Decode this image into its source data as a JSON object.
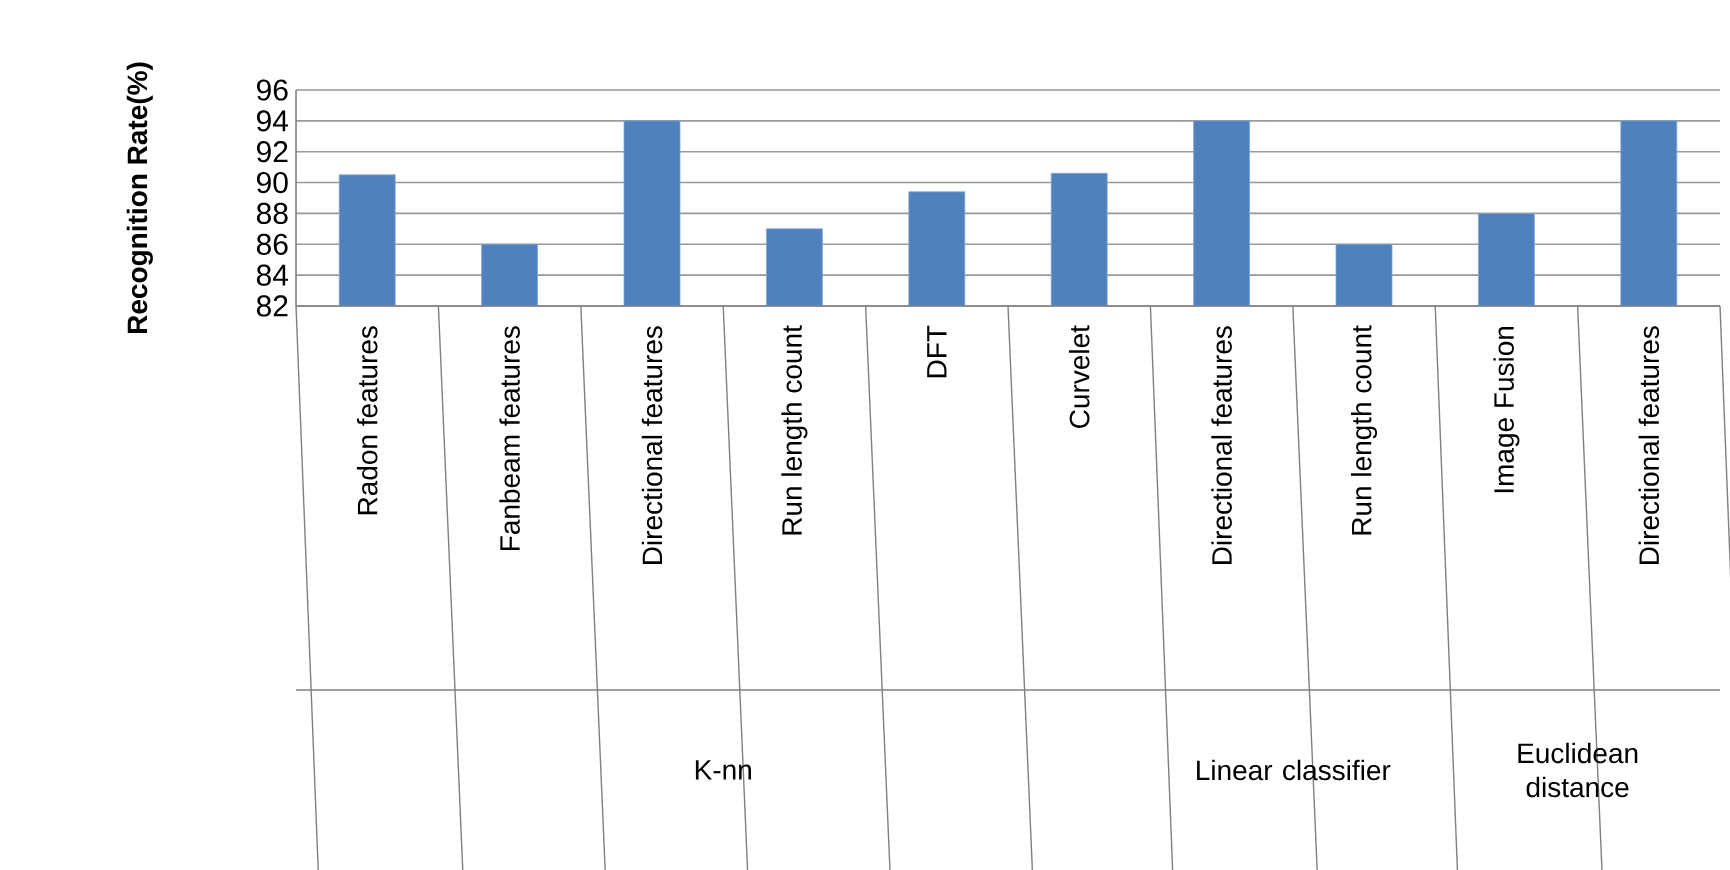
{
  "chart_data": {
    "type": "bar",
    "ylabel": "Recognition Rate(%)",
    "categories": [
      "Radon features",
      "Fanbeam features",
      "Directional features",
      "Run length count",
      "DFT",
      "Curvelet",
      "Directional features",
      "Run length count",
      "Image Fusion",
      "Directional features"
    ],
    "values": [
      90.5,
      86,
      94,
      87,
      89.4,
      90.6,
      94,
      86,
      88,
      94
    ],
    "color": "#4f81bd",
    "ylim": [
      82,
      96
    ],
    "yticks": [
      82,
      84,
      86,
      88,
      90,
      92,
      94,
      96
    ],
    "grid": "y",
    "annotations": [
      "K-nn",
      "Linear classifier",
      "Euclidean distance"
    ]
  }
}
